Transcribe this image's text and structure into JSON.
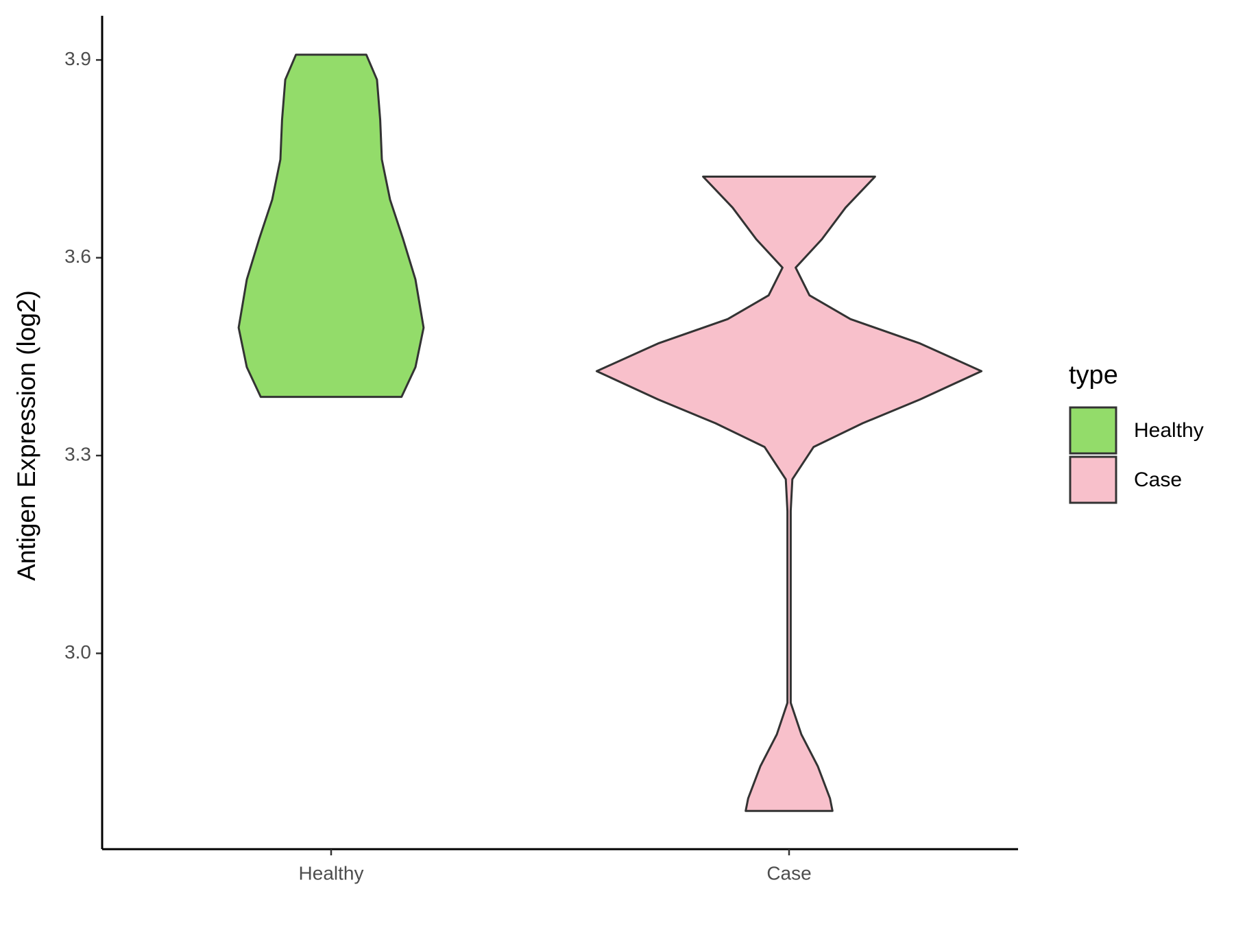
{
  "chart_data": {
    "type": "violin",
    "ylabel": "Antigen Expression (log2)",
    "categories": [
      "Healthy",
      "Case"
    ],
    "legend_title": "type",
    "ylim": [
      2.703,
      3.967
    ],
    "yticks": [
      {
        "value": 3,
        "label": "3.0"
      },
      3.3,
      3.6,
      3.9
    ],
    "series": [
      {
        "name": "Healthy",
        "color": "#93dc6a",
        "y": [
          3.908,
          3.87,
          3.809,
          3.749,
          3.688,
          3.628,
          3.567,
          3.494,
          3.434,
          3.389
        ],
        "density": [
          43,
          56,
          60,
          62,
          72,
          88,
          103,
          113,
          103,
          86
        ]
      },
      {
        "name": "Case",
        "color": "#f8c0cb",
        "y": [
          3.723,
          3.676,
          3.628,
          3.585,
          3.543,
          3.507,
          3.47,
          3.428,
          3.385,
          3.349,
          3.313,
          3.264,
          3.216,
          2.925,
          2.877,
          2.829,
          2.78,
          2.761
        ],
        "density": [
          105,
          69,
          40,
          8,
          25,
          75,
          160,
          235,
          160,
          90,
          30,
          4,
          2,
          2,
          15,
          35,
          50,
          53
        ]
      }
    ]
  }
}
